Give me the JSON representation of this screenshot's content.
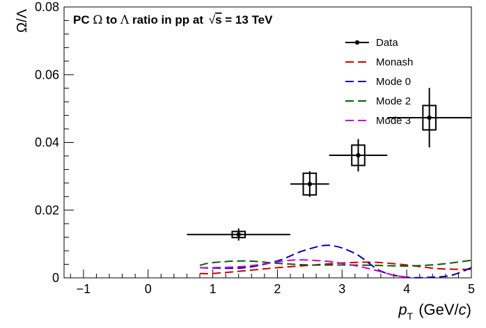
{
  "chart_data": {
    "type": "line",
    "title": "PC Ω to Λ ratio in pp at √s = 13 TeV",
    "title_parts": {
      "prefix": "PC",
      "omega": "Ω",
      "to": "to",
      "lambda": "Λ",
      "ratio": "ratio in pp at",
      "sqrt": "√",
      "s": "s",
      "energy": "= 13 TeV"
    },
    "ylabel": "Ω/Λ",
    "xlabel_parts": {
      "p": "p",
      "sub": "T",
      "unit_open": "(GeV/",
      "c": "c",
      "unit_close": ")"
    },
    "xlim": [
      -1.3,
      5
    ],
    "ylim": [
      0,
      0.08
    ],
    "x_ticks": [
      -1,
      0,
      1,
      2,
      3,
      4,
      5
    ],
    "x_tick_labels": [
      "−1",
      "0",
      "1",
      "2",
      "3",
      "4",
      "5"
    ],
    "y_ticks": [
      0,
      0.02,
      0.04,
      0.06,
      0.08
    ],
    "y_tick_labels": [
      "0",
      "0.02",
      "0.04",
      "0.06",
      "0.08"
    ],
    "legend_position": "top-right",
    "data": {
      "name": "Data",
      "color": "#000000",
      "points": [
        {
          "x": 1.4,
          "y": 0.0128,
          "xerr": [
            0.8,
            0.8
          ],
          "stat": 0.0018,
          "sys_half_w": 0.1,
          "sys": 0.0009
        },
        {
          "x": 2.5,
          "y": 0.0277,
          "xerr": [
            0.3,
            0.3
          ],
          "stat": 0.0038,
          "sys_half_w": 0.1,
          "sys": 0.0032
        },
        {
          "x": 3.25,
          "y": 0.0362,
          "xerr": [
            0.45,
            0.45
          ],
          "stat": 0.0048,
          "sys_half_w": 0.1,
          "sys": 0.003
        },
        {
          "x": 4.35,
          "y": 0.0473,
          "xerr": [
            0.65,
            0.65
          ],
          "stat": 0.0088,
          "sys_half_w": 0.1,
          "sys": 0.0036
        }
      ]
    },
    "series": [
      {
        "name": "Monash",
        "color": "#cc0000",
        "x": [
          0.8,
          1.0,
          1.5,
          2.0,
          2.5,
          3.0,
          3.5,
          4.0,
          4.5,
          5.0
        ],
        "values": [
          0.0013,
          0.0013,
          0.0021,
          0.003,
          0.0037,
          0.0044,
          0.0046,
          0.0038,
          0.0027,
          0.0025
        ]
      },
      {
        "name": "Mode 0",
        "color": "#0000b0",
        "x": [
          0.8,
          1.0,
          1.5,
          2.0,
          2.4,
          2.8,
          3.2,
          3.6,
          4.0,
          4.4,
          4.7,
          5.0
        ],
        "values": [
          0.003,
          0.0029,
          0.003,
          0.005,
          0.008,
          0.0096,
          0.0072,
          0.002,
          0.0002,
          0.0002,
          0.0008,
          0.003
        ]
      },
      {
        "name": "Mode 2",
        "color": "#006000",
        "x": [
          0.8,
          1.0,
          1.5,
          2.0,
          2.5,
          3.0,
          3.5,
          4.0,
          4.5,
          5.0
        ],
        "values": [
          0.0037,
          0.0045,
          0.005,
          0.0043,
          0.0038,
          0.0038,
          0.0037,
          0.0035,
          0.004,
          0.0052
        ]
      },
      {
        "name": "Mode 3",
        "color": "#cc00cc",
        "x": [
          0.8,
          1.0,
          1.5,
          2.0,
          2.3,
          2.7,
          3.0,
          3.4,
          3.8,
          4.0
        ],
        "values": [
          0.003,
          0.003,
          0.0034,
          0.0047,
          0.0053,
          0.005,
          0.0043,
          0.0028,
          0.0008,
          0.0002
        ]
      }
    ]
  }
}
